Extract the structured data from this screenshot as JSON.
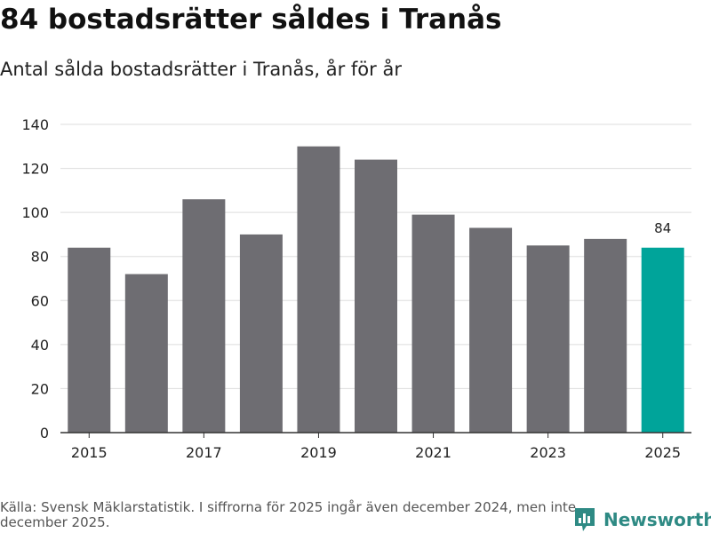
{
  "title": "84 bostadsrätter såldes i Tranås",
  "subtitle": "Antal sålda bostadsrätter i Tranås, år för år",
  "source": "Källa: Svensk Mäklarstatistik. I siffrorna för 2025 ingår även december 2024, men inte december 2025.",
  "brand": "Newsworthy",
  "colors": {
    "bar": "#6e6d72",
    "highlight": "#00a49a",
    "grid": "#dddddd",
    "brand": "#2e8a84"
  },
  "chart_data": {
    "type": "bar",
    "title": "84 bostadsrätter såldes i Tranås",
    "subtitle": "Antal sålda bostadsrätter i Tranås, år för år",
    "xlabel": "",
    "ylabel": "",
    "categories": [
      "2015",
      "2016",
      "2017",
      "2018",
      "2019",
      "2020",
      "2021",
      "2022",
      "2023",
      "2024",
      "2025"
    ],
    "values": [
      84,
      72,
      106,
      90,
      130,
      124,
      99,
      93,
      85,
      88,
      84
    ],
    "xtick_labels": [
      "2015",
      "2017",
      "2019",
      "2021",
      "2023",
      "2025"
    ],
    "yticks": [
      0,
      20,
      40,
      60,
      80,
      100,
      120,
      140
    ],
    "ylim": [
      0,
      140
    ],
    "highlight_category": "2025",
    "data_labels": [
      {
        "category": "2025",
        "text": "84"
      }
    ],
    "grid": true,
    "legend": "none"
  }
}
